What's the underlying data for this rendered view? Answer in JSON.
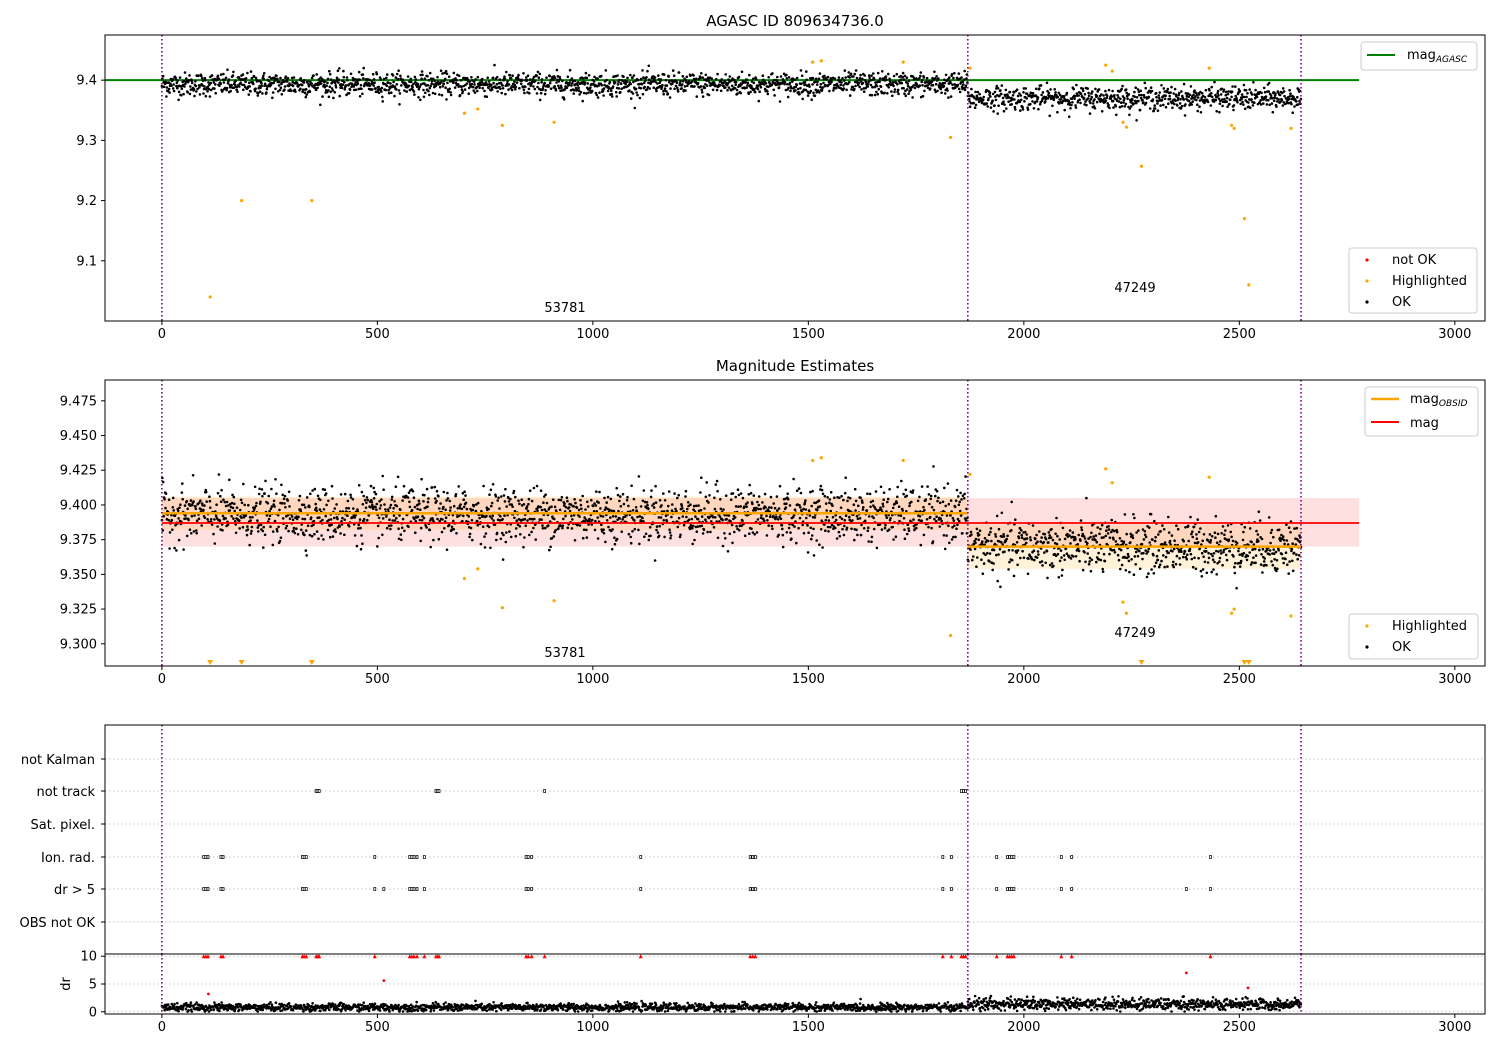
{
  "figure": {
    "panel1_title": "AGASC ID 809634736.0",
    "panel2_title": "Magnitude Estimates",
    "obsid_labels": [
      "53781",
      "47249"
    ],
    "obs_boundaries": [
      0,
      1870,
      2643
    ],
    "legend1": [
      "mag_AGASC",
      "not OK",
      "Highlighted",
      "OK"
    ],
    "legend2": [
      "mag_OBSID",
      "mag",
      "Highlighted",
      "OK"
    ],
    "panel3_ylabels": [
      "not Kalman",
      "not track",
      "Sat. pixel.",
      "Ion. rad.",
      "dr > 5",
      "OBS not OK"
    ],
    "panel4_ylabel": "dr",
    "colors": {
      "ok": "#000000",
      "highlighted": "#ffa500",
      "not_ok": "#ff0000",
      "agasc_line": "#008000",
      "obsid_line": "#ffa500",
      "mag_line": "#ff0000",
      "boundary": "#800080"
    }
  },
  "chart_data": [
    {
      "type": "scatter",
      "title": "AGASC ID 809634736.0",
      "xlabel": "",
      "ylabel": "",
      "xlim": [
        -132,
        3070
      ],
      "ylim": [
        9.0,
        9.475
      ],
      "xticks": [
        0,
        500,
        1000,
        1500,
        2000,
        2500,
        3000
      ],
      "yticks": [
        9.1,
        9.2,
        9.3,
        9.4
      ],
      "grid": false,
      "legend_upper": "top-right",
      "legend_lower": "bottom-right",
      "hlines": [
        {
          "name": "mag_AGASC",
          "y": 9.4,
          "xrange": [
            -132,
            2778
          ]
        }
      ],
      "series": [
        {
          "name": "not OK",
          "points": []
        },
        {
          "name": "Highlighted",
          "points": [
            [
              112,
              9.04
            ],
            [
              185,
              9.2
            ],
            [
              348,
              9.2
            ],
            [
              702,
              9.345
            ],
            [
              733,
              9.352
            ],
            [
              790,
              9.325
            ],
            [
              910,
              9.33
            ],
            [
              1510,
              9.43
            ],
            [
              1530,
              9.432
            ],
            [
              1720,
              9.43
            ],
            [
              1830,
              9.305
            ],
            [
              1875,
              9.42
            ],
            [
              2190,
              9.425
            ],
            [
              2205,
              9.415
            ],
            [
              2230,
              9.33
            ],
            [
              2238,
              9.322
            ],
            [
              2273,
              9.257
            ],
            [
              2430,
              9.42
            ],
            [
              2482,
              9.325
            ],
            [
              2488,
              9.32
            ],
            [
              2512,
              9.17
            ],
            [
              2522,
              9.06
            ],
            [
              2620,
              9.32
            ]
          ]
        },
        {
          "name": "OK",
          "description": "dense points",
          "segments": [
            {
              "x": [
                0,
                1870
              ],
              "y_center": 9.393,
              "spread": 0.013
            },
            {
              "x": [
                1870,
                2643
              ],
              "y_center": 9.37,
              "spread": 0.013
            }
          ]
        }
      ],
      "annotations": [
        "53781",
        "47249"
      ]
    },
    {
      "type": "scatter",
      "title": "Magnitude Estimates",
      "xlabel": "",
      "ylabel": "",
      "xlim": [
        -132,
        3070
      ],
      "ylim": [
        9.284,
        9.49
      ],
      "xticks": [
        0,
        500,
        1000,
        1500,
        2000,
        2500,
        3000
      ],
      "yticks": [
        9.3,
        9.325,
        9.35,
        9.375,
        9.4,
        9.425,
        9.45,
        9.475
      ],
      "grid": false,
      "legend_upper": "top-right",
      "legend_lower": "bottom-right",
      "lines": [
        {
          "name": "mag",
          "y": 9.387,
          "band": [
            9.37,
            9.405
          ],
          "xrange": [
            0,
            2778
          ]
        },
        {
          "name": "mag_OBSID",
          "segments": [
            {
              "x": [
                0,
                1870
              ],
              "y": 9.394,
              "band": [
                9.382,
                9.406
              ]
            },
            {
              "x": [
                1870,
                2643
              ],
              "y": 9.37,
              "band": [
                9.354,
                9.386
              ]
            }
          ]
        }
      ],
      "series": [
        {
          "name": "Highlighted",
          "points": [
            [
              702,
              9.347
            ],
            [
              733,
              9.354
            ],
            [
              790,
              9.326
            ],
            [
              910,
              9.331
            ],
            [
              1510,
              9.432
            ],
            [
              1530,
              9.434
            ],
            [
              1720,
              9.432
            ],
            [
              1830,
              9.306
            ],
            [
              1875,
              9.422
            ],
            [
              2190,
              9.426
            ],
            [
              2205,
              9.416
            ],
            [
              2230,
              9.33
            ],
            [
              2238,
              9.322
            ],
            [
              2430,
              9.42
            ],
            [
              2482,
              9.322
            ],
            [
              2488,
              9.325
            ],
            [
              2620,
              9.32
            ]
          ]
        },
        {
          "name": "Highlighted (out of range)",
          "x": [
            112,
            185,
            348,
            2273,
            2512,
            2522
          ]
        },
        {
          "name": "OK",
          "description": "dense points",
          "segments": [
            {
              "x": [
                0,
                1870
              ],
              "y_center": 9.393,
              "spread": 0.013
            },
            {
              "x": [
                1870,
                2643
              ],
              "y_center": 9.37,
              "spread": 0.013
            }
          ]
        }
      ],
      "annotations": [
        "53781",
        "47249"
      ]
    },
    {
      "type": "scatter",
      "title": "",
      "ylabel": "",
      "categories": [
        "not Kalman",
        "not track",
        "Sat. pixel.",
        "Ion. rad.",
        "dr > 5",
        "OBS not OK"
      ],
      "xlim": [
        -132,
        3070
      ],
      "grid": "horizontal dotted",
      "series": [
        {
          "name": "not Kalman",
          "x": []
        },
        {
          "name": "not track",
          "x": [
            358,
            362,
            365,
            636,
            640,
            643,
            888,
            1855,
            1860,
            1865
          ]
        },
        {
          "name": "Sat. pixel.",
          "x": []
        },
        {
          "name": "Ion. rad.",
          "x": [
            97,
            102,
            107,
            137,
            142,
            326,
            330,
            335,
            494,
            575,
            580,
            585,
            592,
            609,
            845,
            850,
            858,
            1111,
            1365,
            1371,
            1377,
            1812,
            1832,
            1937,
            1962,
            1967,
            1972,
            1977,
            2087,
            2111,
            2433
          ]
        },
        {
          "name": "dr > 5",
          "x": [
            97,
            102,
            107,
            137,
            142,
            326,
            330,
            335,
            494,
            515,
            575,
            580,
            585,
            592,
            609,
            845,
            850,
            858,
            1111,
            1365,
            1371,
            1377,
            1812,
            1832,
            1937,
            1962,
            1967,
            1972,
            1977,
            2087,
            2111,
            2377,
            2433
          ]
        },
        {
          "name": "OBS not OK",
          "x": []
        }
      ]
    },
    {
      "type": "scatter",
      "title": "",
      "ylabel": "dr",
      "xlim": [
        -132,
        3070
      ],
      "ylim": [
        -0.4,
        10.4
      ],
      "xticks": [
        0,
        500,
        1000,
        1500,
        2000,
        2500,
        3000
      ],
      "yticks": [
        0,
        5,
        10
      ],
      "grid": "horizontal dotted",
      "series": [
        {
          "name": "not OK (clipped at 10)",
          "x": [
            97,
            102,
            107,
            137,
            142,
            326,
            330,
            335,
            358,
            362,
            365,
            494,
            575,
            580,
            585,
            592,
            609,
            636,
            640,
            643,
            845,
            850,
            858,
            888,
            1111,
            1365,
            1371,
            1377,
            1812,
            1832,
            1855,
            1860,
            1865,
            1937,
            1962,
            1967,
            1972,
            1977,
            2087,
            2111,
            2433
          ],
          "y": 10
        },
        {
          "name": "not OK",
          "points": [
            [
              108,
              3.2
            ],
            [
              515,
              5.6
            ],
            [
              2377,
              7.0
            ],
            [
              2520,
              4.3
            ]
          ]
        },
        {
          "name": "OK",
          "description": "dense points",
          "segments": [
            {
              "x": [
                0,
                1870
              ],
              "y_center": 0.8,
              "spread": 0.35
            },
            {
              "x": [
                1870,
                2643
              ],
              "y_center": 1.3,
              "spread": 0.5
            }
          ]
        }
      ]
    }
  ]
}
